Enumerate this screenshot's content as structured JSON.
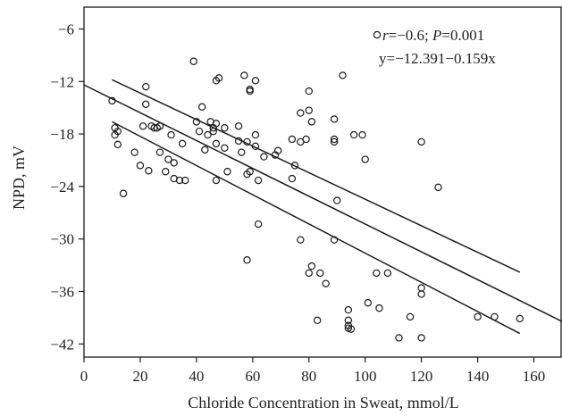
{
  "chart_data": {
    "type": "scatter",
    "title": "",
    "xlabel": "Chloride Concentration in Sweat, mmol/L",
    "ylabel": "NPD, mV",
    "xlim": [
      0,
      170
    ],
    "ylim": [
      -43.5,
      -3.5
    ],
    "x_ticks": [
      0,
      20,
      40,
      60,
      80,
      100,
      120,
      140,
      160
    ],
    "y_ticks": [
      -6,
      -12,
      -18,
      -24,
      -30,
      -36,
      -42
    ],
    "x_tick_labels": [
      "0",
      "20",
      "40",
      "60",
      "80",
      "100",
      "120",
      "140",
      "160"
    ],
    "y_tick_labels": [
      "−6",
      "−12",
      "−18",
      "−24",
      "−30",
      "−36",
      "−42"
    ],
    "grid": false,
    "marker": "open-circle",
    "colors": {
      "points": "#1a1a1a",
      "lines": "#1a1a1a",
      "frame": "#1a1a1a"
    },
    "annotation": {
      "line1_r": "r",
      "line1_r_value": "=−0.6; ",
      "line1_p": "P",
      "line1_p_value": "=0.001",
      "line2": "y=−12.391−0.159x",
      "position": "top-right"
    },
    "regression": {
      "fit": {
        "x": [
          0,
          170
        ],
        "y": [
          -12.391,
          -39.421
        ]
      },
      "ci_upper": {
        "x": [
          10,
          155
        ],
        "y": [
          -11.8,
          -33.8
        ]
      },
      "ci_lower": {
        "x": [
          10,
          155
        ],
        "y": [
          -16.6,
          -40.8
        ]
      }
    },
    "points": [
      {
        "x": 10,
        "y": -14.2
      },
      {
        "x": 11,
        "y": -17.3
      },
      {
        "x": 11,
        "y": -18.1
      },
      {
        "x": 12,
        "y": -17.7
      },
      {
        "x": 12,
        "y": -19.2
      },
      {
        "x": 14,
        "y": -24.8
      },
      {
        "x": 18,
        "y": -20.1
      },
      {
        "x": 20,
        "y": -21.6
      },
      {
        "x": 21,
        "y": -17.1
      },
      {
        "x": 22,
        "y": -12.6
      },
      {
        "x": 22,
        "y": -14.6
      },
      {
        "x": 23,
        "y": -22.2
      },
      {
        "x": 24,
        "y": -17.1
      },
      {
        "x": 25,
        "y": -17.3
      },
      {
        "x": 26,
        "y": -17.3
      },
      {
        "x": 27,
        "y": -17.1
      },
      {
        "x": 27,
        "y": -20.1
      },
      {
        "x": 29,
        "y": -22.3
      },
      {
        "x": 30,
        "y": -20.9
      },
      {
        "x": 31,
        "y": -18.1
      },
      {
        "x": 32,
        "y": -21.3
      },
      {
        "x": 32,
        "y": -23.1
      },
      {
        "x": 34,
        "y": -23.3
      },
      {
        "x": 35,
        "y": -19.1
      },
      {
        "x": 36,
        "y": -23.3
      },
      {
        "x": 39,
        "y": -9.7
      },
      {
        "x": 40,
        "y": -16.6
      },
      {
        "x": 41,
        "y": -17.7
      },
      {
        "x": 42,
        "y": -14.9
      },
      {
        "x": 43,
        "y": -19.8
      },
      {
        "x": 44,
        "y": -18.1
      },
      {
        "x": 45,
        "y": -16.6
      },
      {
        "x": 46,
        "y": -17.3
      },
      {
        "x": 46,
        "y": -17.7
      },
      {
        "x": 47,
        "y": -11.9
      },
      {
        "x": 47,
        "y": -16.8
      },
      {
        "x": 47,
        "y": -19.1
      },
      {
        "x": 47,
        "y": -23.3
      },
      {
        "x": 48,
        "y": -11.6
      },
      {
        "x": 50,
        "y": -19.6
      },
      {
        "x": 50,
        "y": -17.3
      },
      {
        "x": 51,
        "y": -22.3
      },
      {
        "x": 55,
        "y": -17.1
      },
      {
        "x": 55,
        "y": -18.8
      },
      {
        "x": 56,
        "y": -20.1
      },
      {
        "x": 57,
        "y": -11.3
      },
      {
        "x": 58,
        "y": -18.9
      },
      {
        "x": 58,
        "y": -22.6
      },
      {
        "x": 58,
        "y": -32.4
      },
      {
        "x": 59,
        "y": -12.9
      },
      {
        "x": 59,
        "y": -13.1
      },
      {
        "x": 59,
        "y": -22.3
      },
      {
        "x": 61,
        "y": -11.9
      },
      {
        "x": 61,
        "y": -18.1
      },
      {
        "x": 61,
        "y": -19.4
      },
      {
        "x": 62,
        "y": -23.3
      },
      {
        "x": 62,
        "y": -28.3
      },
      {
        "x": 64,
        "y": -20.6
      },
      {
        "x": 68,
        "y": -20.4
      },
      {
        "x": 69,
        "y": -19.9
      },
      {
        "x": 74,
        "y": -18.6
      },
      {
        "x": 74,
        "y": -23.1
      },
      {
        "x": 75,
        "y": -21.6
      },
      {
        "x": 77,
        "y": -15.6
      },
      {
        "x": 77,
        "y": -18.9
      },
      {
        "x": 77,
        "y": -30.1
      },
      {
        "x": 79,
        "y": -18.6
      },
      {
        "x": 80,
        "y": -13.1
      },
      {
        "x": 80,
        "y": -15.3
      },
      {
        "x": 80,
        "y": -33.9
      },
      {
        "x": 81,
        "y": -16.6
      },
      {
        "x": 81,
        "y": -33.1
      },
      {
        "x": 83,
        "y": -39.3
      },
      {
        "x": 84,
        "y": -33.9
      },
      {
        "x": 86,
        "y": -35.1
      },
      {
        "x": 89,
        "y": -16.3
      },
      {
        "x": 89,
        "y": -18.6
      },
      {
        "x": 89,
        "y": -18.9
      },
      {
        "x": 89,
        "y": -30.1
      },
      {
        "x": 90,
        "y": -25.6
      },
      {
        "x": 92,
        "y": -11.3
      },
      {
        "x": 94,
        "y": -38.1
      },
      {
        "x": 94,
        "y": -39.3
      },
      {
        "x": 94,
        "y": -39.9
      },
      {
        "x": 94,
        "y": -40.2
      },
      {
        "x": 95,
        "y": -40.3
      },
      {
        "x": 96,
        "y": -18.1
      },
      {
        "x": 99,
        "y": -18.1
      },
      {
        "x": 100,
        "y": -20.9
      },
      {
        "x": 101,
        "y": -37.3
      },
      {
        "x": 104,
        "y": -33.9
      },
      {
        "x": 105,
        "y": -37.9
      },
      {
        "x": 108,
        "y": -33.9
      },
      {
        "x": 112,
        "y": -41.3
      },
      {
        "x": 116,
        "y": -38.9
      },
      {
        "x": 120,
        "y": -18.9
      },
      {
        "x": 120,
        "y": -35.6
      },
      {
        "x": 120,
        "y": -36.3
      },
      {
        "x": 120,
        "y": -41.3
      },
      {
        "x": 126,
        "y": -24.1
      },
      {
        "x": 140,
        "y": -38.9
      },
      {
        "x": 146,
        "y": -38.9
      },
      {
        "x": 155,
        "y": -39.1
      }
    ]
  }
}
